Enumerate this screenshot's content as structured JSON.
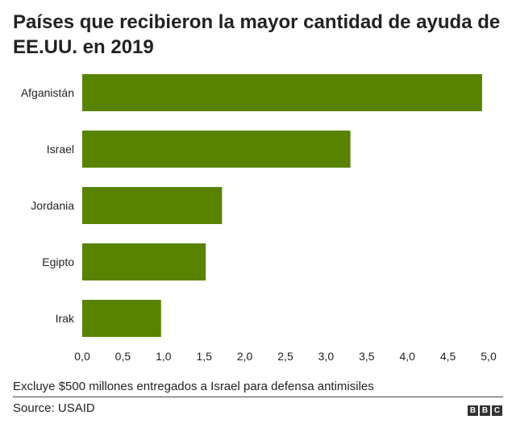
{
  "chart_data": {
    "type": "bar",
    "orientation": "horizontal",
    "title": "Países que recibieron la mayor cantidad de ayuda de EE.UU. en 2019",
    "categories": [
      "Afganistán",
      "Israel",
      "Jordania",
      "Egipto",
      "Irak"
    ],
    "values": [
      4.92,
      3.3,
      1.72,
      1.52,
      0.97
    ],
    "xlim": [
      0,
      5
    ],
    "xticks": [
      "0,0",
      "0,5",
      "1,0",
      "1,5",
      "2,0",
      "2,5",
      "3,0",
      "3,5",
      "4,0",
      "4,5",
      "5,0"
    ],
    "xlabel": "",
    "ylabel": "",
    "grid": false,
    "bar_color": "#588300",
    "note": "Excluye $500 millones entregados a Israel para defensa antimisiles",
    "source": "Source: USAID"
  },
  "logo": {
    "letters": [
      "B",
      "B",
      "C"
    ],
    "color": "#333333"
  }
}
